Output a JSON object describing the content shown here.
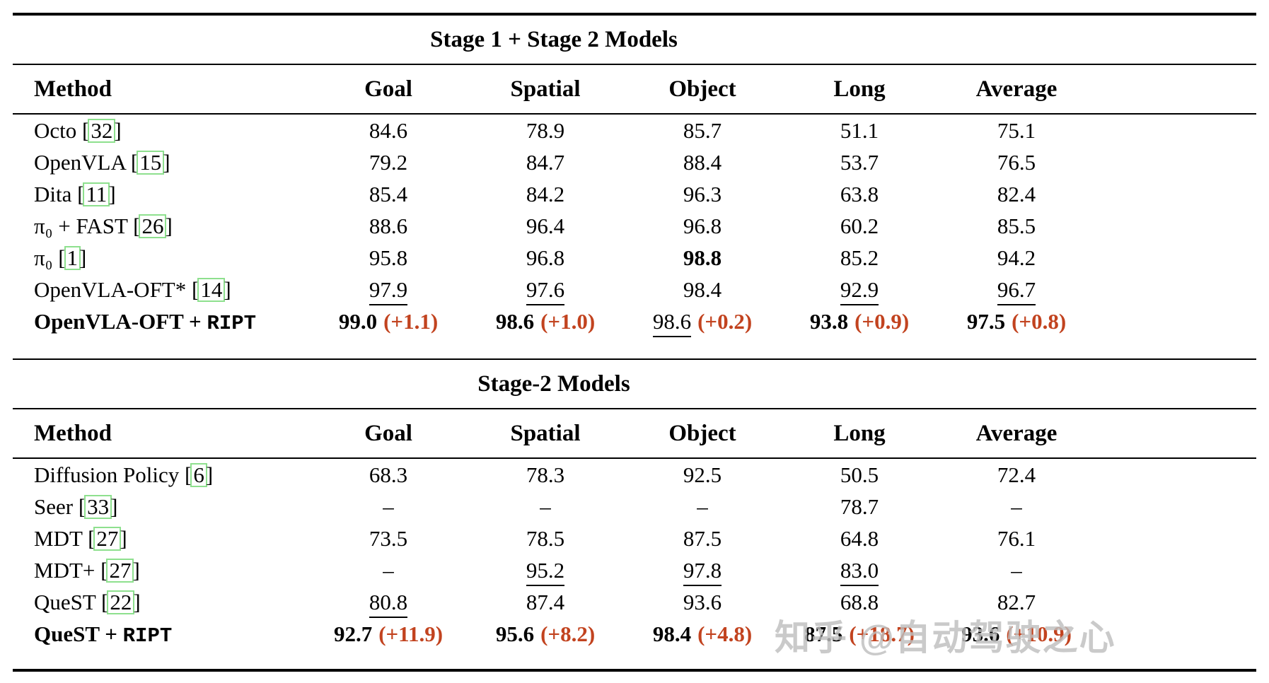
{
  "colors": {
    "accent_red": "#c2431f",
    "cite_green": "#8ee08e",
    "watermark_gray": "#bebebe"
  },
  "watermark": {
    "text": "知乎 @自动驾驶之心"
  },
  "tables": [
    {
      "title": "Stage 1 + Stage 2 Models",
      "columns": [
        "Method",
        "Goal",
        "Spatial",
        "Object",
        "Long",
        "Average"
      ],
      "rows": [
        {
          "method": "Octo",
          "cite": "32",
          "bold": false,
          "cells": [
            {
              "v": "84.6"
            },
            {
              "v": "78.9"
            },
            {
              "v": "85.7"
            },
            {
              "v": "51.1"
            },
            {
              "v": "75.1"
            }
          ]
        },
        {
          "method": "OpenVLA",
          "cite": "15",
          "bold": false,
          "cells": [
            {
              "v": "79.2"
            },
            {
              "v": "84.7"
            },
            {
              "v": "88.4"
            },
            {
              "v": "53.7"
            },
            {
              "v": "76.5"
            }
          ]
        },
        {
          "method": "Dita",
          "cite": "11",
          "bold": false,
          "cells": [
            {
              "v": "85.4"
            },
            {
              "v": "84.2"
            },
            {
              "v": "96.3"
            },
            {
              "v": "63.8"
            },
            {
              "v": "82.4"
            }
          ]
        },
        {
          "method": "π₀ + FAST",
          "cite": "26",
          "bold": false,
          "cells": [
            {
              "v": "88.6"
            },
            {
              "v": "96.4"
            },
            {
              "v": "96.8"
            },
            {
              "v": "60.2"
            },
            {
              "v": "85.5"
            }
          ]
        },
        {
          "method": "π₀",
          "cite": "1",
          "bold": false,
          "cells": [
            {
              "v": "95.8"
            },
            {
              "v": "96.8"
            },
            {
              "v": "98.8",
              "b": true
            },
            {
              "v": "85.2"
            },
            {
              "v": "94.2"
            }
          ]
        },
        {
          "method": "OpenVLA-OFT*",
          "cite": "14",
          "bold": false,
          "cells": [
            {
              "v": "97.9",
              "u": true
            },
            {
              "v": "97.6",
              "u": true
            },
            {
              "v": "98.4"
            },
            {
              "v": "92.9",
              "u": true
            },
            {
              "v": "96.7",
              "u": true
            }
          ]
        },
        {
          "method": "OpenVLA-OFT + ",
          "ript": "RIPT",
          "bold": true,
          "cells": [
            {
              "v": "99.0",
              "b": true,
              "d": "(+1.1)"
            },
            {
              "v": "98.6",
              "b": true,
              "d": "(+1.0)"
            },
            {
              "v": "98.6",
              "u": true,
              "d": "(+0.2)"
            },
            {
              "v": "93.8",
              "b": true,
              "d": "(+0.9)"
            },
            {
              "v": "97.5",
              "b": true,
              "d": "(+0.8)"
            }
          ]
        }
      ]
    },
    {
      "title": "Stage-2 Models",
      "columns": [
        "Method",
        "Goal",
        "Spatial",
        "Object",
        "Long",
        "Average"
      ],
      "rows": [
        {
          "method": "Diffusion Policy",
          "cite": "6",
          "bold": false,
          "cells": [
            {
              "v": "68.3"
            },
            {
              "v": "78.3"
            },
            {
              "v": "92.5"
            },
            {
              "v": "50.5"
            },
            {
              "v": "72.4"
            }
          ]
        },
        {
          "method": "Seer",
          "cite": "33",
          "bold": false,
          "cells": [
            {
              "v": "–"
            },
            {
              "v": "–"
            },
            {
              "v": "–"
            },
            {
              "v": "78.7"
            },
            {
              "v": "–"
            }
          ]
        },
        {
          "method": "MDT",
          "cite": "27",
          "bold": false,
          "cells": [
            {
              "v": "73.5"
            },
            {
              "v": "78.5"
            },
            {
              "v": "87.5"
            },
            {
              "v": "64.8"
            },
            {
              "v": "76.1"
            }
          ]
        },
        {
          "method": "MDT+",
          "cite": "27",
          "bold": false,
          "cells": [
            {
              "v": "–"
            },
            {
              "v": "95.2",
              "u": true
            },
            {
              "v": "97.8",
              "u": true
            },
            {
              "v": "83.0",
              "u": true
            },
            {
              "v": "–"
            }
          ]
        },
        {
          "method": "QueST",
          "cite": "22",
          "bold": false,
          "cells": [
            {
              "v": "80.8",
              "u": true
            },
            {
              "v": "87.4"
            },
            {
              "v": "93.6"
            },
            {
              "v": "68.8"
            },
            {
              "v": "82.7"
            }
          ]
        },
        {
          "method": "QueST + ",
          "ript": "RIPT",
          "bold": true,
          "cells": [
            {
              "v": "92.7",
              "b": true,
              "d": "(+11.9)"
            },
            {
              "v": "95.6",
              "b": true,
              "d": "(+8.2)"
            },
            {
              "v": "98.4",
              "b": true,
              "d": "(+4.8)"
            },
            {
              "v": "87.5",
              "b": true,
              "d": "(+18.7)"
            },
            {
              "v": "93.6",
              "b": true,
              "d": "(+10.9)"
            }
          ]
        }
      ]
    }
  ]
}
